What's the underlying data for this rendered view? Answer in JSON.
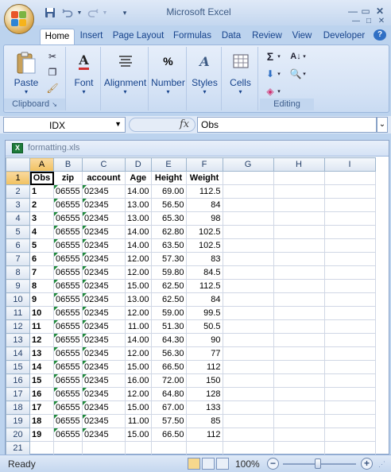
{
  "app": {
    "title": "Microsoft Excel"
  },
  "quick_access": {
    "save_icon": "save-icon",
    "undo_icon": "undo-icon",
    "redo_icon": "redo-icon",
    "customize_icon": "customize-icon"
  },
  "tabs": [
    "Home",
    "Insert",
    "Page Layout",
    "Formulas",
    "Data",
    "Review",
    "View",
    "Developer"
  ],
  "ribbon": {
    "clipboard": {
      "paste": "Paste",
      "label": "Clipboard"
    },
    "font": {
      "label": "Font"
    },
    "alignment": {
      "label": "Alignment"
    },
    "number": {
      "label": "Number",
      "icon_text": "%"
    },
    "styles": {
      "label": "Styles"
    },
    "cells": {
      "label": "Cells"
    },
    "editing": {
      "label": "Editing",
      "sum_icon": "Σ"
    }
  },
  "formula_bar": {
    "name_box": "IDX",
    "fx": "fx",
    "formula": "Obs"
  },
  "workbook": {
    "name": "formatting.xls"
  },
  "sheet": {
    "columns": [
      "A",
      "B",
      "C",
      "D",
      "E",
      "F",
      "G",
      "H",
      "I"
    ],
    "headers": [
      "Obs",
      "zip",
      "account",
      "Age",
      "Height",
      "Weight"
    ],
    "rows": [
      [
        "1",
        "06555",
        "02345",
        "14.00",
        "69.00",
        "112.5"
      ],
      [
        "2",
        "06555",
        "02345",
        "13.00",
        "56.50",
        "84"
      ],
      [
        "3",
        "06555",
        "02345",
        "13.00",
        "65.30",
        "98"
      ],
      [
        "4",
        "06555",
        "02345",
        "14.00",
        "62.80",
        "102.5"
      ],
      [
        "5",
        "06555",
        "02345",
        "14.00",
        "63.50",
        "102.5"
      ],
      [
        "6",
        "06555",
        "02345",
        "12.00",
        "57.30",
        "83"
      ],
      [
        "7",
        "06555",
        "02345",
        "12.00",
        "59.80",
        "84.5"
      ],
      [
        "8",
        "06555",
        "02345",
        "15.00",
        "62.50",
        "112.5"
      ],
      [
        "9",
        "06555",
        "02345",
        "13.00",
        "62.50",
        "84"
      ],
      [
        "10",
        "06555",
        "02345",
        "12.00",
        "59.00",
        "99.5"
      ],
      [
        "11",
        "06555",
        "02345",
        "11.00",
        "51.30",
        "50.5"
      ],
      [
        "12",
        "06555",
        "02345",
        "14.00",
        "64.30",
        "90"
      ],
      [
        "13",
        "06555",
        "02345",
        "12.00",
        "56.30",
        "77"
      ],
      [
        "14",
        "06555",
        "02345",
        "15.00",
        "66.50",
        "112"
      ],
      [
        "15",
        "06555",
        "02345",
        "16.00",
        "72.00",
        "150"
      ],
      [
        "16",
        "06555",
        "02345",
        "12.00",
        "64.80",
        "128"
      ],
      [
        "17",
        "06555",
        "02345",
        "15.00",
        "67.00",
        "133"
      ],
      [
        "18",
        "06555",
        "02345",
        "11.00",
        "57.50",
        "85"
      ],
      [
        "19",
        "06555",
        "02345",
        "15.00",
        "66.50",
        "112"
      ]
    ],
    "row_numbers": [
      "1",
      "2",
      "3",
      "4",
      "5",
      "6",
      "7",
      "8",
      "9",
      "10",
      "11",
      "12",
      "13",
      "14",
      "15",
      "16",
      "17",
      "18",
      "19",
      "20",
      "21"
    ]
  },
  "status": {
    "text": "Ready",
    "zoom": "100%"
  },
  "colors": {
    "accent": "#15428b",
    "selection_header": "#f1c15f",
    "text_indicator": "#1f8a3a"
  }
}
